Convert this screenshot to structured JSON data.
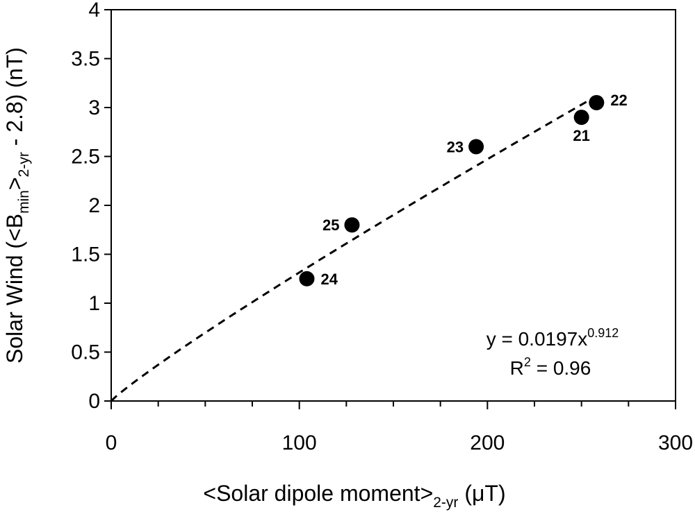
{
  "chart_data": {
    "type": "scatter",
    "xlabel": {
      "main": "<Solar dipole moment>",
      "sub": "2-yr",
      "unit": " (μT)"
    },
    "ylabel": {
      "pre": "Solar Wind (<B",
      "sub1": "min",
      "mid": ">",
      "sub2": "2-yr",
      "post": " - 2.8) (nT)"
    },
    "xlim": [
      0,
      300
    ],
    "ylim": [
      0,
      4
    ],
    "x_major_ticks": [
      0,
      100,
      200,
      300
    ],
    "x_tick_labels": [
      "0",
      "100",
      "200",
      "300"
    ],
    "x_minor_step": 25,
    "y_ticks": [
      0,
      0.5,
      1,
      1.5,
      2,
      2.5,
      3,
      3.5,
      4
    ],
    "y_tick_labels": [
      "0",
      "0.5",
      "1",
      "1.5",
      "2",
      "2.5",
      "3",
      "3.5",
      "4"
    ],
    "points": [
      {
        "label": "21",
        "x": 250,
        "y": 2.9
      },
      {
        "label": "22",
        "x": 258,
        "y": 3.05
      },
      {
        "label": "23",
        "x": 194,
        "y": 2.6
      },
      {
        "label": "24",
        "x": 104,
        "y": 1.25
      },
      {
        "label": "25",
        "x": 128,
        "y": 1.8
      }
    ],
    "trendline": {
      "type": "power",
      "coefficient": 0.0197,
      "exponent": 0.912,
      "x_range": [
        0,
        258
      ],
      "style": "dashed"
    },
    "equation": {
      "main": "y = 0.0197x",
      "exponent": "0.912",
      "r2_prefix": "R",
      "r2_sup": "2",
      "r2_rest": " = 0.96"
    },
    "grid": false,
    "legend": "none"
  }
}
